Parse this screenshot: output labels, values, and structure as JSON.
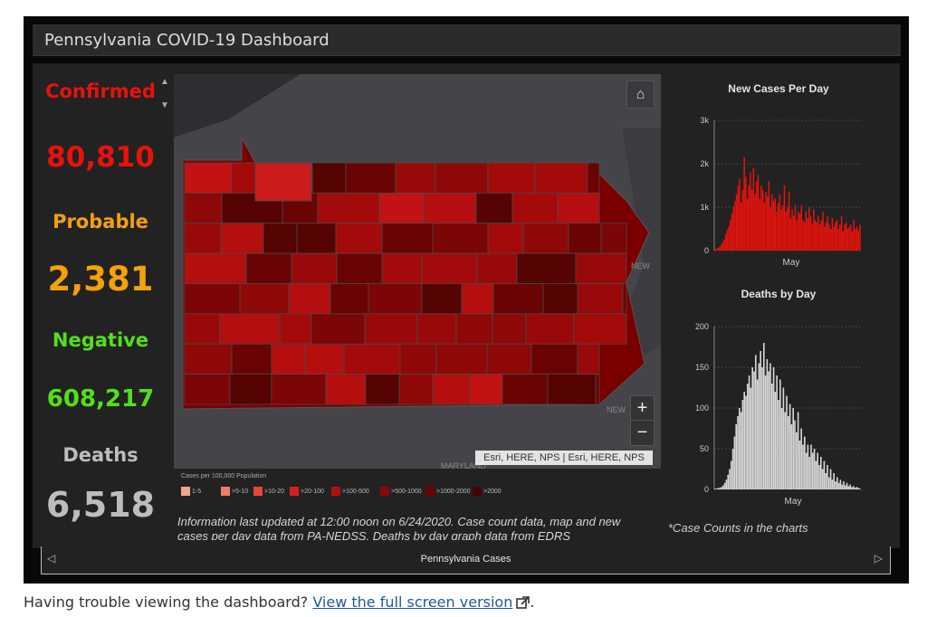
{
  "dashboard": {
    "title": "Pennsylvania COVID-19 Dashboard"
  },
  "stats": [
    {
      "label": "Confirmed Cases",
      "label_visible": "Confirmed",
      "color": "#e8120c"
    },
    {
      "value": "80,810",
      "color": "#e8120c"
    },
    {
      "label": "Probable",
      "color": "#f3a10c"
    },
    {
      "value": "2,381",
      "color": "#f3a10c"
    },
    {
      "label": "Negative",
      "color": "#52e01a"
    },
    {
      "value": "608,217",
      "color": "#52e01a"
    },
    {
      "label": "Deaths",
      "color": "#bdbdbd"
    },
    {
      "value": "6,518",
      "color": "#bdbdbd"
    }
  ],
  "map": {
    "home_icon": "home-icon",
    "zoom_in": "+",
    "zoom_out": "−",
    "attribution": "Esri, HERE, NPS | Esri, HERE, NPS",
    "labels": {
      "new_jersey_top": "NEW",
      "new_jersey_bottom": "NEW",
      "maryland": "MARYLAND"
    },
    "legend_title": "Cases per 100,000 Population",
    "legend": [
      {
        "label": "1-5",
        "color": "#f4a58a"
      },
      {
        "label": ">5-10",
        "color": "#f07d68"
      },
      {
        "label": ">10-20",
        "color": "#e8463a"
      },
      {
        "label": ">20-100",
        "color": "#d42020"
      },
      {
        "label": ">100-500",
        "color": "#b40e0e"
      },
      {
        "label": ">500-1000",
        "color": "#8e0808"
      },
      {
        "label": ">1000-2000",
        "color": "#6a0404"
      },
      {
        "label": ">2000",
        "color": "#4a0202"
      }
    ]
  },
  "info_text": "Information last updated at 12:00 noon on 6/24/2020. Case count data, map and new cases per day data from PA-NEDSS.  Deaths by day graph data from EDRS",
  "note_text": "*Case Counts in the charts",
  "chart_data": [
    {
      "type": "bar",
      "title": "New Cases Per Day",
      "xlabel": "May",
      "ylabel": "",
      "yticks": [
        "0",
        "1k",
        "2k",
        "3k"
      ],
      "ylim": [
        0,
        3000
      ],
      "color": "#e8120c",
      "values": [
        20,
        40,
        60,
        90,
        130,
        200,
        260,
        380,
        480,
        560,
        700,
        850,
        1000,
        1150,
        1300,
        1500,
        1650,
        1100,
        1400,
        2150,
        1700,
        1200,
        1500,
        1800,
        1400,
        1900,
        1300,
        1600,
        1750,
        1200,
        1500,
        1400,
        1100,
        1350,
        1250,
        1600,
        1000,
        1300,
        1150,
        1200,
        900,
        1100,
        1300,
        950,
        1050,
        1500,
        900,
        1000,
        1350,
        750,
        950,
        800,
        1050,
        700,
        900,
        850,
        1050,
        700,
        650,
        900,
        750,
        1000,
        800,
        600,
        950,
        700,
        650,
        800,
        600,
        700,
        900,
        550,
        650,
        800,
        600,
        500,
        750,
        550,
        650,
        700,
        500,
        600,
        800,
        450,
        600,
        650,
        500,
        550,
        600,
        450,
        700,
        500,
        550,
        450,
        600
      ]
    },
    {
      "type": "bar",
      "title": "Deaths by Day",
      "xlabel": "May",
      "ylabel": "",
      "yticks": [
        "0",
        "50",
        "100",
        "150",
        "200"
      ],
      "ylim": [
        0,
        200
      ],
      "color": "#d9d9d9",
      "values": [
        1,
        1,
        2,
        2,
        3,
        5,
        8,
        12,
        18,
        25,
        35,
        50,
        65,
        80,
        90,
        100,
        95,
        110,
        120,
        115,
        130,
        140,
        125,
        150,
        145,
        165,
        135,
        155,
        170,
        150,
        180,
        140,
        160,
        145,
        155,
        130,
        150,
        120,
        140,
        110,
        135,
        100,
        125,
        95,
        115,
        90,
        105,
        80,
        100,
        85,
        70,
        95,
        60,
        75,
        55,
        65,
        45,
        55,
        40,
        55,
        45,
        50,
        35,
        45,
        30,
        40,
        25,
        35,
        20,
        30,
        15,
        25,
        12,
        20,
        10,
        15,
        8,
        12,
        6,
        10,
        5,
        8,
        4,
        6,
        3,
        4,
        2,
        3,
        2,
        1
      ]
    }
  ],
  "tabbar": {
    "label": "Pennsylvania Cases",
    "prev_icon": "chevron-left-icon",
    "next_icon": "chevron-right-icon"
  },
  "footer": {
    "text": "Having trouble viewing the dashboard? ",
    "link_text": "View the full screen version",
    "suffix": "."
  }
}
